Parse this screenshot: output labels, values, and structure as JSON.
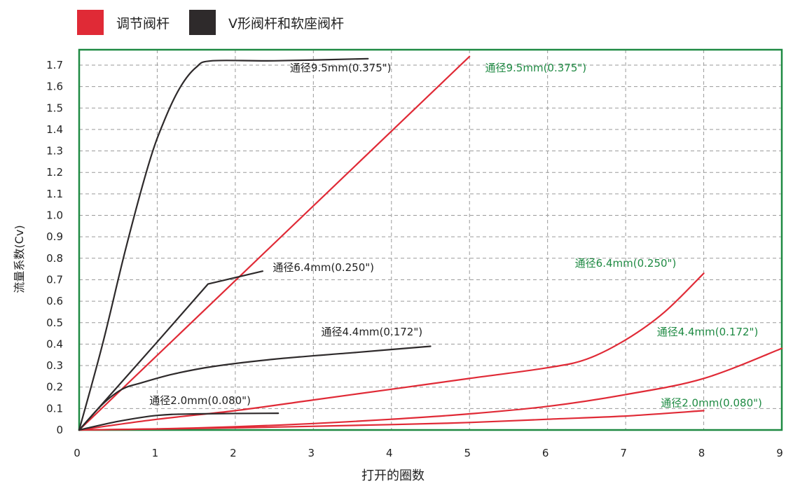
{
  "legend": [
    {
      "label": "调节阀杆",
      "color": "#e02a36"
    },
    {
      "label": "V形阀杆和软座阀杆",
      "color": "#2e2a2b"
    }
  ],
  "colors": {
    "frame": "#1f8a43",
    "grid": "#9a9a9a",
    "red_label": "#1f8a43",
    "dark_label": "#222222"
  },
  "chart_data": {
    "type": "line",
    "xlabel": "打开的圈数",
    "ylabel": "流量系数(Cv)",
    "xlim": [
      0,
      9
    ],
    "ylim": [
      0,
      1.72
    ],
    "xticks": [
      "0",
      "1",
      "2",
      "3",
      "4",
      "5",
      "6",
      "7",
      "8",
      "9"
    ],
    "yticks": [
      "0",
      "0.1",
      "0.2",
      "0.3",
      "0.4",
      "0.5",
      "0.6",
      "0.7",
      "0.8",
      "0.9",
      "1.0",
      "1.1",
      "1.2",
      "1.3",
      "1.4",
      "1.5",
      "1.6",
      "1.7"
    ],
    "grid": true,
    "series": [
      {
        "group": "调节阀杆",
        "label": "通径9.5mm(0.375\")",
        "x": [
          0,
          5
        ],
        "y": [
          0,
          1.74
        ]
      },
      {
        "group": "调节阀杆",
        "label": "通径6.4mm(0.250\")",
        "x": [
          0,
          1,
          2,
          3,
          4,
          5,
          6,
          6.5,
          7,
          7.5,
          8
        ],
        "y": [
          0,
          0.05,
          0.09,
          0.14,
          0.19,
          0.24,
          0.29,
          0.33,
          0.42,
          0.55,
          0.73
        ]
      },
      {
        "group": "调节阀杆",
        "label": "通径4.4mm(0.172\")",
        "x": [
          0,
          1,
          2,
          3,
          4,
          5,
          6,
          7,
          8,
          9
        ],
        "y": [
          0,
          0.005,
          0.015,
          0.03,
          0.05,
          0.075,
          0.11,
          0.165,
          0.24,
          0.38
        ]
      },
      {
        "group": "调节阀杆",
        "label": "通径2.0mm(0.080\")",
        "x": [
          0,
          2,
          4,
          5,
          6,
          7,
          8
        ],
        "y": [
          0,
          0.01,
          0.025,
          0.035,
          0.05,
          0.065,
          0.09
        ]
      },
      {
        "group": "V形阀杆和软座阀杆",
        "label": "通径9.5mm(0.375\")",
        "x": [
          0,
          0.3,
          0.6,
          0.9,
          1.1,
          1.3,
          1.5,
          1.7,
          2.5,
          3.7
        ],
        "y": [
          0,
          0.4,
          0.85,
          1.25,
          1.45,
          1.6,
          1.69,
          1.72,
          1.72,
          1.73
        ]
      },
      {
        "group": "V形阀杆和软座阀杆",
        "label": "通径6.4mm(0.250\")",
        "x": [
          0,
          1.0,
          1.65,
          2.35
        ],
        "y": [
          0,
          0.41,
          0.68,
          0.74
        ]
      },
      {
        "group": "V形阀杆和软座阀杆",
        "label": "通径4.4mm(0.172\")",
        "x": [
          0,
          0.3,
          0.55,
          0.8,
          1.2,
          1.7,
          2.5,
          3.5,
          4.5
        ],
        "y": [
          0,
          0.12,
          0.19,
          0.22,
          0.26,
          0.295,
          0.33,
          0.36,
          0.39
        ]
      },
      {
        "group": "V形阀杆和软座阀杆",
        "label": "通径2.0mm(0.080\")",
        "x": [
          0,
          0.5,
          1.0,
          1.5,
          2.55
        ],
        "y": [
          0,
          0.04,
          0.068,
          0.075,
          0.078
        ]
      }
    ],
    "annotations": [
      {
        "text": "通径9.5mm(0.375\")",
        "x": 2.7,
        "y": 1.67,
        "color": "dark"
      },
      {
        "text": "通径9.5mm(0.375\")",
        "x": 5.2,
        "y": 1.67,
        "color": "red"
      },
      {
        "text": "通径6.4mm(0.250\")",
        "x": 2.48,
        "y": 0.74,
        "color": "dark"
      },
      {
        "text": "通径6.4mm(0.250\")",
        "x": 6.35,
        "y": 0.76,
        "color": "red"
      },
      {
        "text": "通径4.4mm(0.172\")",
        "x": 3.1,
        "y": 0.44,
        "color": "dark"
      },
      {
        "text": "通径4.4mm(0.172\")",
        "x": 7.4,
        "y": 0.44,
        "color": "red"
      },
      {
        "text": "通径2.0mm(0.080\")",
        "x": 0.9,
        "y": 0.12,
        "color": "dark"
      },
      {
        "text": "通径2.0mm(0.080\")",
        "x": 7.45,
        "y": 0.11,
        "color": "red"
      }
    ]
  }
}
